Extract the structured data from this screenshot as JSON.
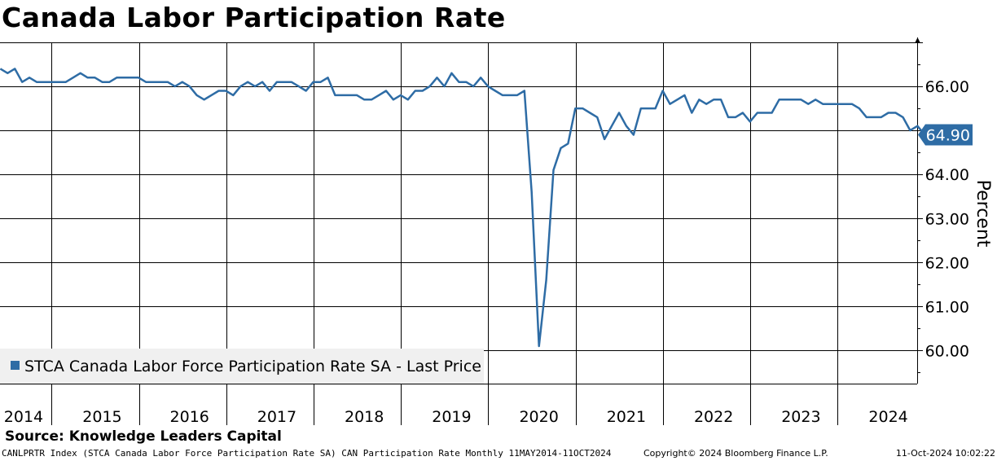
{
  "page_title": "Canada Labor Participation Rate",
  "source": "Source: Knowledge Leaders Capital",
  "footer": {
    "ticker_info": "CANLPRTR Index (STCA Canada Labor Force Participation Rate SA) CAN Participation Rate  Monthly 11MAY2014-11OCT2024",
    "copyright": "Copyright© 2024 Bloomberg Finance L.P.",
    "timestamp": "11-Oct-2024 10:02:22"
  },
  "colors": {
    "line": "#2e6ca5",
    "grid": "#000000",
    "legend_bg": "#f0f0f0"
  },
  "chart_data": {
    "type": "line",
    "title": "Canada Labor Participation Rate",
    "ylabel": "Percent",
    "xlabel": "",
    "ylim": [
      59.25,
      67.0
    ],
    "x_range": [
      2014.33,
      2024.83
    ],
    "y_ticks": [
      "60.00",
      "61.00",
      "62.00",
      "63.00",
      "64.00",
      "66.00"
    ],
    "y_tick_values": [
      60,
      61,
      62,
      63,
      64,
      66
    ],
    "x_ticks": [
      "2014",
      "2015",
      "2016",
      "2017",
      "2018",
      "2019",
      "2020",
      "2021",
      "2022",
      "2023",
      "2024"
    ],
    "x_tick_values": [
      2014.6,
      2015.5,
      2016.5,
      2017.5,
      2018.5,
      2019.5,
      2020.5,
      2021.5,
      2022.5,
      2023.5,
      2024.5
    ],
    "x_gridlines": [
      2014.92,
      2015.92,
      2016.92,
      2017.92,
      2018.92,
      2019.92,
      2020.92,
      2021.92,
      2022.92,
      2023.92
    ],
    "y_gridlines": [
      60,
      61,
      62,
      63,
      64,
      65,
      66
    ],
    "last_value": 64.9,
    "last_value_label": "64.90",
    "legend": "STCA Canada Labor Force Participation Rate SA - Last Price",
    "series": [
      {
        "name": "STCA Canada Labor Force Participation Rate SA - Last Price",
        "start": "2014-05",
        "frequency": "monthly",
        "values": [
          66.4,
          66.3,
          66.4,
          66.1,
          66.2,
          66.1,
          66.1,
          66.1,
          66.1,
          66.1,
          66.2,
          66.3,
          66.2,
          66.2,
          66.1,
          66.1,
          66.2,
          66.2,
          66.2,
          66.2,
          66.1,
          66.1,
          66.1,
          66.1,
          66.0,
          66.1,
          66.0,
          65.8,
          65.7,
          65.8,
          65.9,
          65.9,
          65.8,
          66.0,
          66.1,
          66.0,
          66.1,
          65.9,
          66.1,
          66.1,
          66.1,
          66.0,
          65.9,
          66.1,
          66.1,
          66.2,
          65.8,
          65.8,
          65.8,
          65.8,
          65.7,
          65.7,
          65.8,
          65.9,
          65.7,
          65.8,
          65.7,
          65.9,
          65.9,
          66.0,
          66.2,
          66.0,
          66.3,
          66.1,
          66.1,
          66.0,
          66.2,
          66.0,
          65.9,
          65.8,
          65.8,
          65.8,
          65.9,
          63.6,
          60.1,
          61.6,
          64.1,
          64.6,
          64.7,
          65.5,
          65.5,
          65.4,
          65.3,
          64.8,
          65.1,
          65.4,
          65.1,
          64.9,
          65.5,
          65.5,
          65.5,
          65.9,
          65.6,
          65.7,
          65.8,
          65.4,
          65.7,
          65.6,
          65.7,
          65.7,
          65.3,
          65.3,
          65.4,
          65.2,
          65.4,
          65.4,
          65.4,
          65.7,
          65.7,
          65.7,
          65.7,
          65.6,
          65.7,
          65.6,
          65.6,
          65.6,
          65.6,
          65.6,
          65.5,
          65.3,
          65.3,
          65.3,
          65.4,
          65.4,
          65.3,
          65.0,
          65.1,
          64.9
        ]
      }
    ]
  }
}
